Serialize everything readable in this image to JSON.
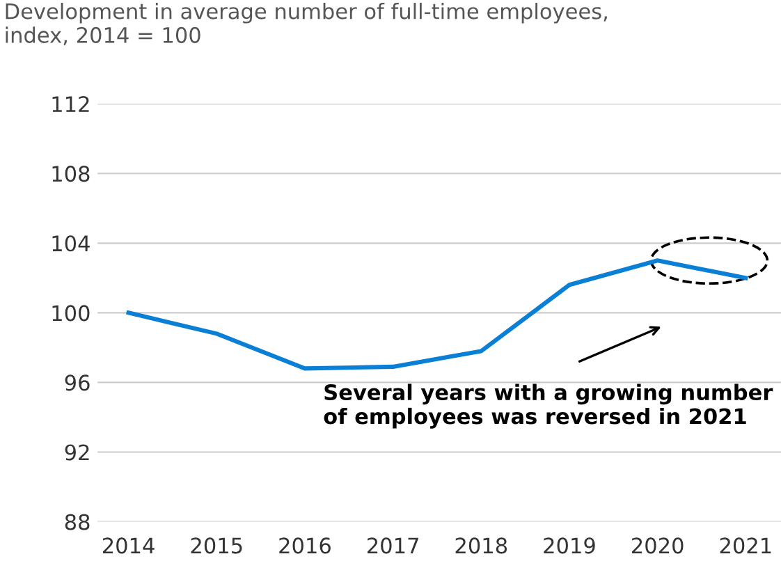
{
  "chart_data": {
    "type": "line",
    "title": "Development in average number of full-time employees,\nindex, 2014 = 100",
    "categories": [
      "2014",
      "2015",
      "2016",
      "2017",
      "2018",
      "2019",
      "2020",
      "2021"
    ],
    "series": [
      {
        "color": "#0a7fd6",
        "values": [
          100,
          98.8,
          96.8,
          96.9,
          97.8,
          101.6,
          103.0,
          102.0
        ]
      }
    ],
    "ylim": [
      88,
      112
    ],
    "yticks": [
      88,
      92,
      96,
      100,
      104,
      108,
      112
    ],
    "grid": "y",
    "marker": "none",
    "line_style": "solid",
    "annotations": [
      "Several years with a growing number\nof employees was reversed in 2021"
    ]
  }
}
